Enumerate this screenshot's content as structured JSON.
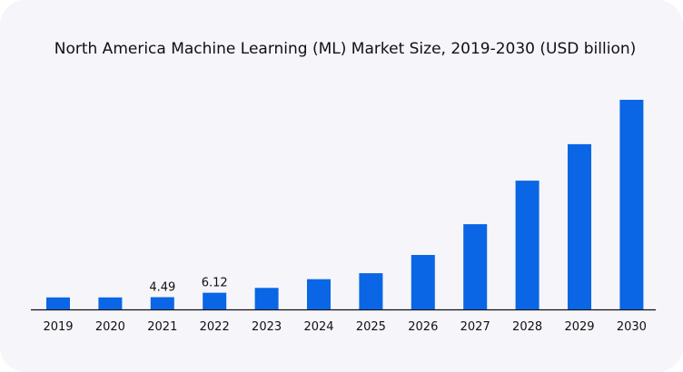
{
  "chart_data": {
    "type": "bar",
    "title": "North America Machine Learning (ML) Market  Size, 2019-2030 (USD billion)",
    "xlabel": "",
    "ylabel": "",
    "categories": [
      "2019",
      "2020",
      "2021",
      "2022",
      "2023",
      "2024",
      "2025",
      "2026",
      "2027",
      "2028",
      "2029",
      "2030"
    ],
    "values": [
      4.4,
      4.4,
      4.49,
      6.12,
      7.9,
      11.1,
      13.3,
      20.0,
      31.3,
      47.3,
      60.7,
      77.0
    ],
    "data_labels": {
      "2021": "4.49",
      "2022": "6.12"
    },
    "ylim": [
      0,
      80
    ],
    "grid": false,
    "bar_color": "#0a66e4"
  }
}
